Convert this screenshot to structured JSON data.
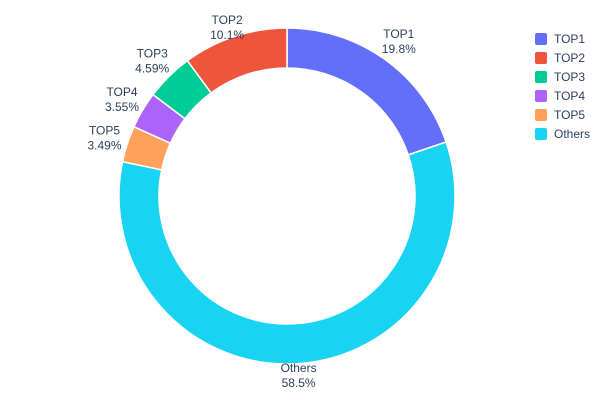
{
  "chart_data": {
    "type": "pie",
    "subtype": "donut",
    "title": "",
    "hole": 0.762,
    "labels": [
      "TOP1",
      "TOP2",
      "TOP3",
      "TOP4",
      "TOP5",
      "Others"
    ],
    "values": [
      19.8,
      10.1,
      4.59,
      3.55,
      3.49,
      58.5
    ],
    "percent_labels": [
      "19.8%",
      "10.1%",
      "4.59%",
      "3.55%",
      "3.49%",
      "58.5%"
    ],
    "colors": [
      "#636efa",
      "#ef553b",
      "#00cc96",
      "#ab63fa",
      "#ffa15a",
      "#19d3f3"
    ],
    "legend": {
      "position": "right",
      "entries": [
        "TOP1",
        "TOP2",
        "TOP3",
        "TOP4",
        "TOP5",
        "Others"
      ]
    },
    "text_color": "#2a3f5f",
    "background": "#ffffff",
    "render_order_clockwise": [
      0,
      5,
      4,
      3,
      2,
      1
    ],
    "start_angle_deg": 0
  }
}
